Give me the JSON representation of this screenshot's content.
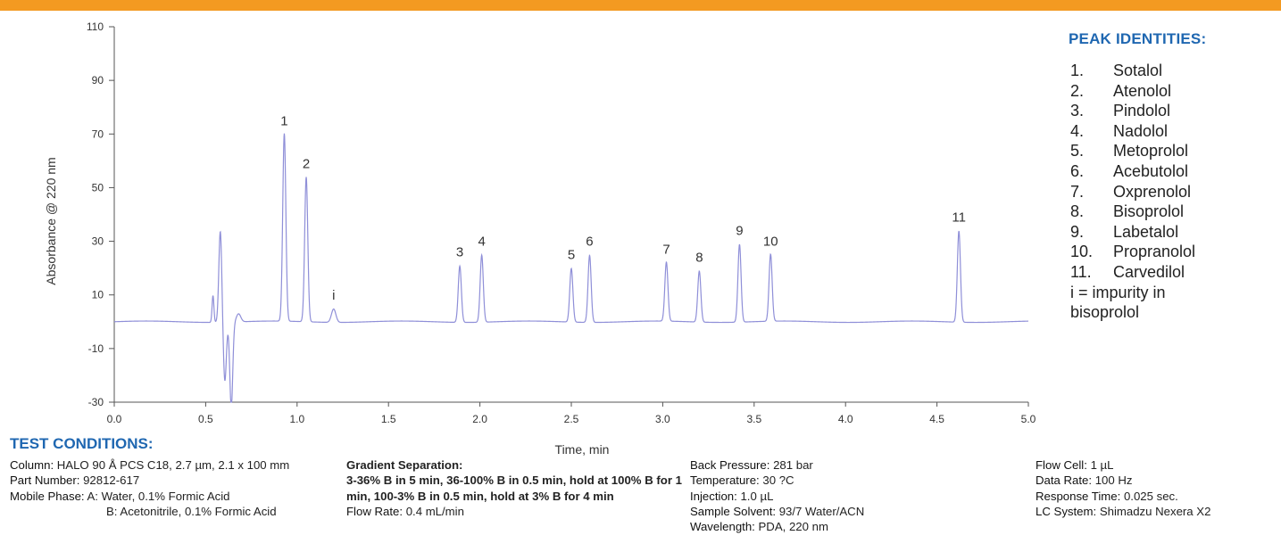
{
  "chart_data": {
    "type": "line",
    "title": "",
    "xlabel": "Time, min",
    "ylabel": "Absorbance @ 220 nm",
    "xlim": [
      0.0,
      5.0
    ],
    "ylim": [
      -30,
      110
    ],
    "x_ticks": [
      "0.0",
      "0.5",
      "1.0",
      "1.5",
      "2.0",
      "2.5",
      "3.0",
      "3.5",
      "4.0",
      "4.5",
      "5.0"
    ],
    "y_ticks": [
      "110",
      "90",
      "70",
      "50",
      "30",
      "10",
      "-10",
      "-30"
    ],
    "grid": false,
    "line_color": "#8f8fd8",
    "baseline": 0,
    "peaks": [
      {
        "label": "1",
        "x": 0.93,
        "y": 70
      },
      {
        "label": "2",
        "x": 1.05,
        "y": 54
      },
      {
        "label": "i",
        "x": 1.2,
        "y": 5
      },
      {
        "label": "3",
        "x": 1.89,
        "y": 21
      },
      {
        "label": "4",
        "x": 2.01,
        "y": 25
      },
      {
        "label": "5",
        "x": 2.5,
        "y": 20
      },
      {
        "label": "6",
        "x": 2.6,
        "y": 25
      },
      {
        "label": "7",
        "x": 3.02,
        "y": 22
      },
      {
        "label": "8",
        "x": 3.2,
        "y": 19
      },
      {
        "label": "9",
        "x": 3.42,
        "y": 29
      },
      {
        "label": "10",
        "x": 3.59,
        "y": 25
      },
      {
        "label": "11",
        "x": 4.62,
        "y": 34
      }
    ],
    "void_disturbance": [
      {
        "x": 0.54,
        "y": 10
      },
      {
        "x": 0.58,
        "y": 34
      },
      {
        "x": 0.64,
        "y": -30
      }
    ]
  },
  "peak_identities": {
    "title": "PEAK IDENTITIES:",
    "items": [
      {
        "num": "1.",
        "name": "Sotalol"
      },
      {
        "num": "2.",
        "name": "Atenolol"
      },
      {
        "num": "3.",
        "name": "Pindolol"
      },
      {
        "num": "4.",
        "name": "Nadolol"
      },
      {
        "num": "5.",
        "name": "Metoprolol"
      },
      {
        "num": "6.",
        "name": "Acebutolol"
      },
      {
        "num": "7.",
        "name": "Oxprenolol"
      },
      {
        "num": "8.",
        "name": "Bisoprolol"
      },
      {
        "num": "9.",
        "name": "Labetalol"
      },
      {
        "num": "10.",
        "name": "Propranolol"
      },
      {
        "num": "11.",
        "name": "Carvedilol"
      }
    ],
    "note": "i = impurity in bisoprolol"
  },
  "test_conditions": {
    "title": "TEST CONDITIONS:",
    "column_label": "Column:",
    "column_value": "HALO 90 Å PCS C18, 2.7 µm, 2.1 x 100 mm",
    "part_label": "Part Number:",
    "part_value": "92812-617",
    "mobile_label": "Mobile Phase:",
    "mobile_a": "A: Water, 0.1% Formic Acid",
    "mobile_b": "B: Acetonitrile, 0.1% Formic Acid",
    "gradient_label": "Gradient Separation:",
    "gradient_value": "3-36% B in 5 min, 36-100% B in 0.5 min, hold at 100% B for 1 min, 100-3% B in 0.5 min, hold at 3% B for 4 min",
    "flow_rate_label": "Flow Rate:",
    "flow_rate_value": "0.4 mL/min",
    "pressure_label": "Back Pressure:",
    "pressure_value": "281 bar",
    "temperature_label": "Temperature:",
    "temperature_value": "30 ?C",
    "injection_label": "Injection:",
    "injection_value": "1.0 µL",
    "solvent_label": "Sample Solvent:",
    "solvent_value": "93/7 Water/ACN",
    "wavelength_label": "Wavelength:",
    "wavelength_value": "PDA, 220 nm",
    "flowcell_label": "Flow Cell:",
    "flowcell_value": "1 µL",
    "datarate_label": "Data Rate:",
    "datarate_value": "100 Hz",
    "response_label": "Response Time:",
    "response_value": "0.025 sec.",
    "lcsystem_label": "LC System:",
    "lcsystem_value": "Shimadzu Nexera X2"
  },
  "colors": {
    "accent_bar": "#f39a21",
    "heading_blue": "#1f67b1",
    "trace": "#8f8fd8"
  }
}
